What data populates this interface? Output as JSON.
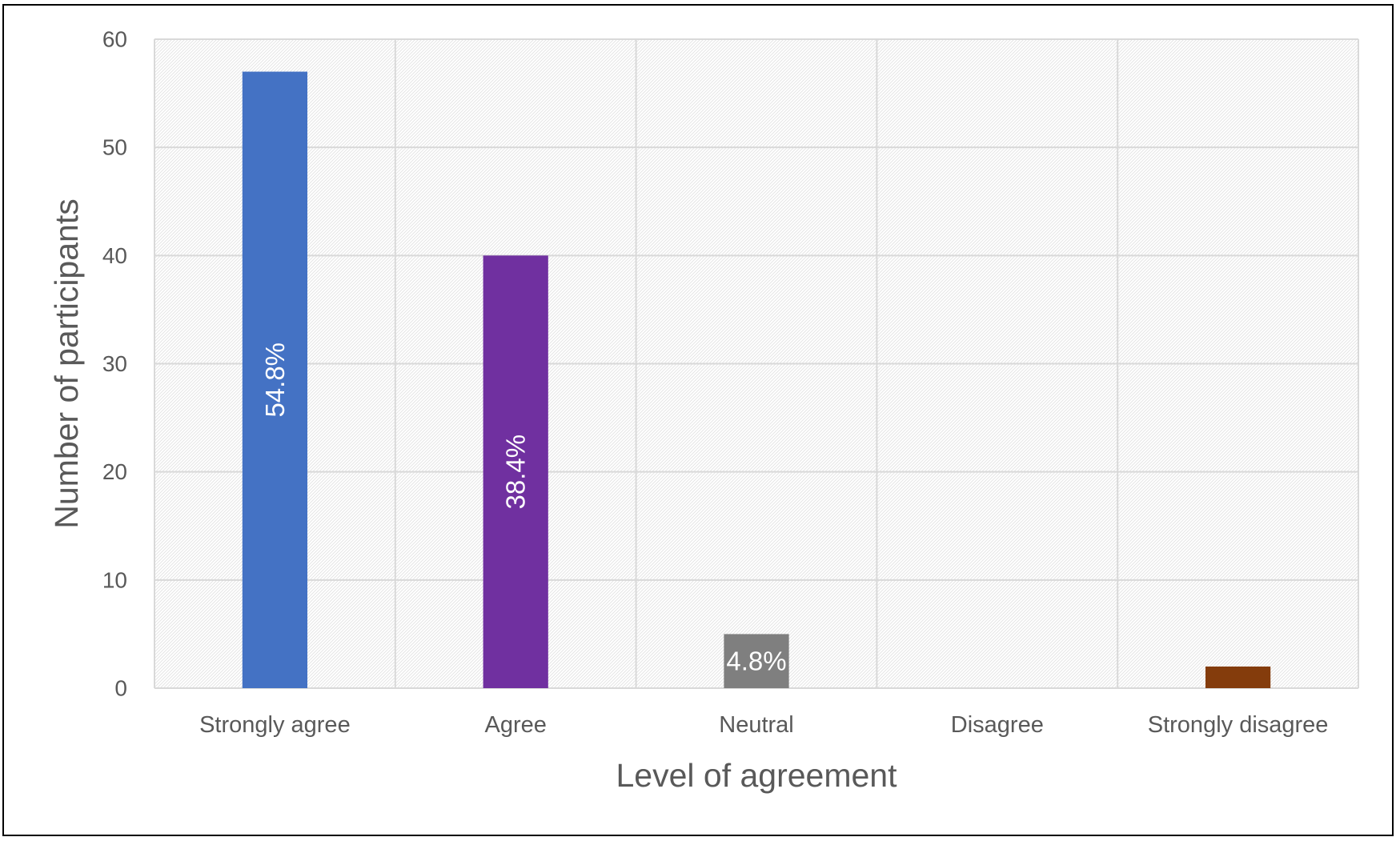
{
  "chart_data": {
    "type": "bar",
    "title": "",
    "xlabel": "Level of agreement",
    "ylabel": "Number of participants",
    "ylim": [
      0,
      60
    ],
    "yticks": [
      0,
      10,
      20,
      30,
      40,
      50,
      60
    ],
    "grid": true,
    "legend": "none",
    "categories": [
      "Strongly agree",
      "Agree",
      "Neutral",
      "Disagree",
      "Strongly disagree"
    ],
    "values": [
      57,
      40,
      5,
      0,
      2
    ],
    "data_labels": [
      "54.8%",
      "38.4%",
      "4.8%",
      "",
      ""
    ],
    "colors": [
      "#4472C4",
      "#7030A0",
      "#7F7F7F",
      "#A5A5A5",
      "#843C0C"
    ]
  }
}
